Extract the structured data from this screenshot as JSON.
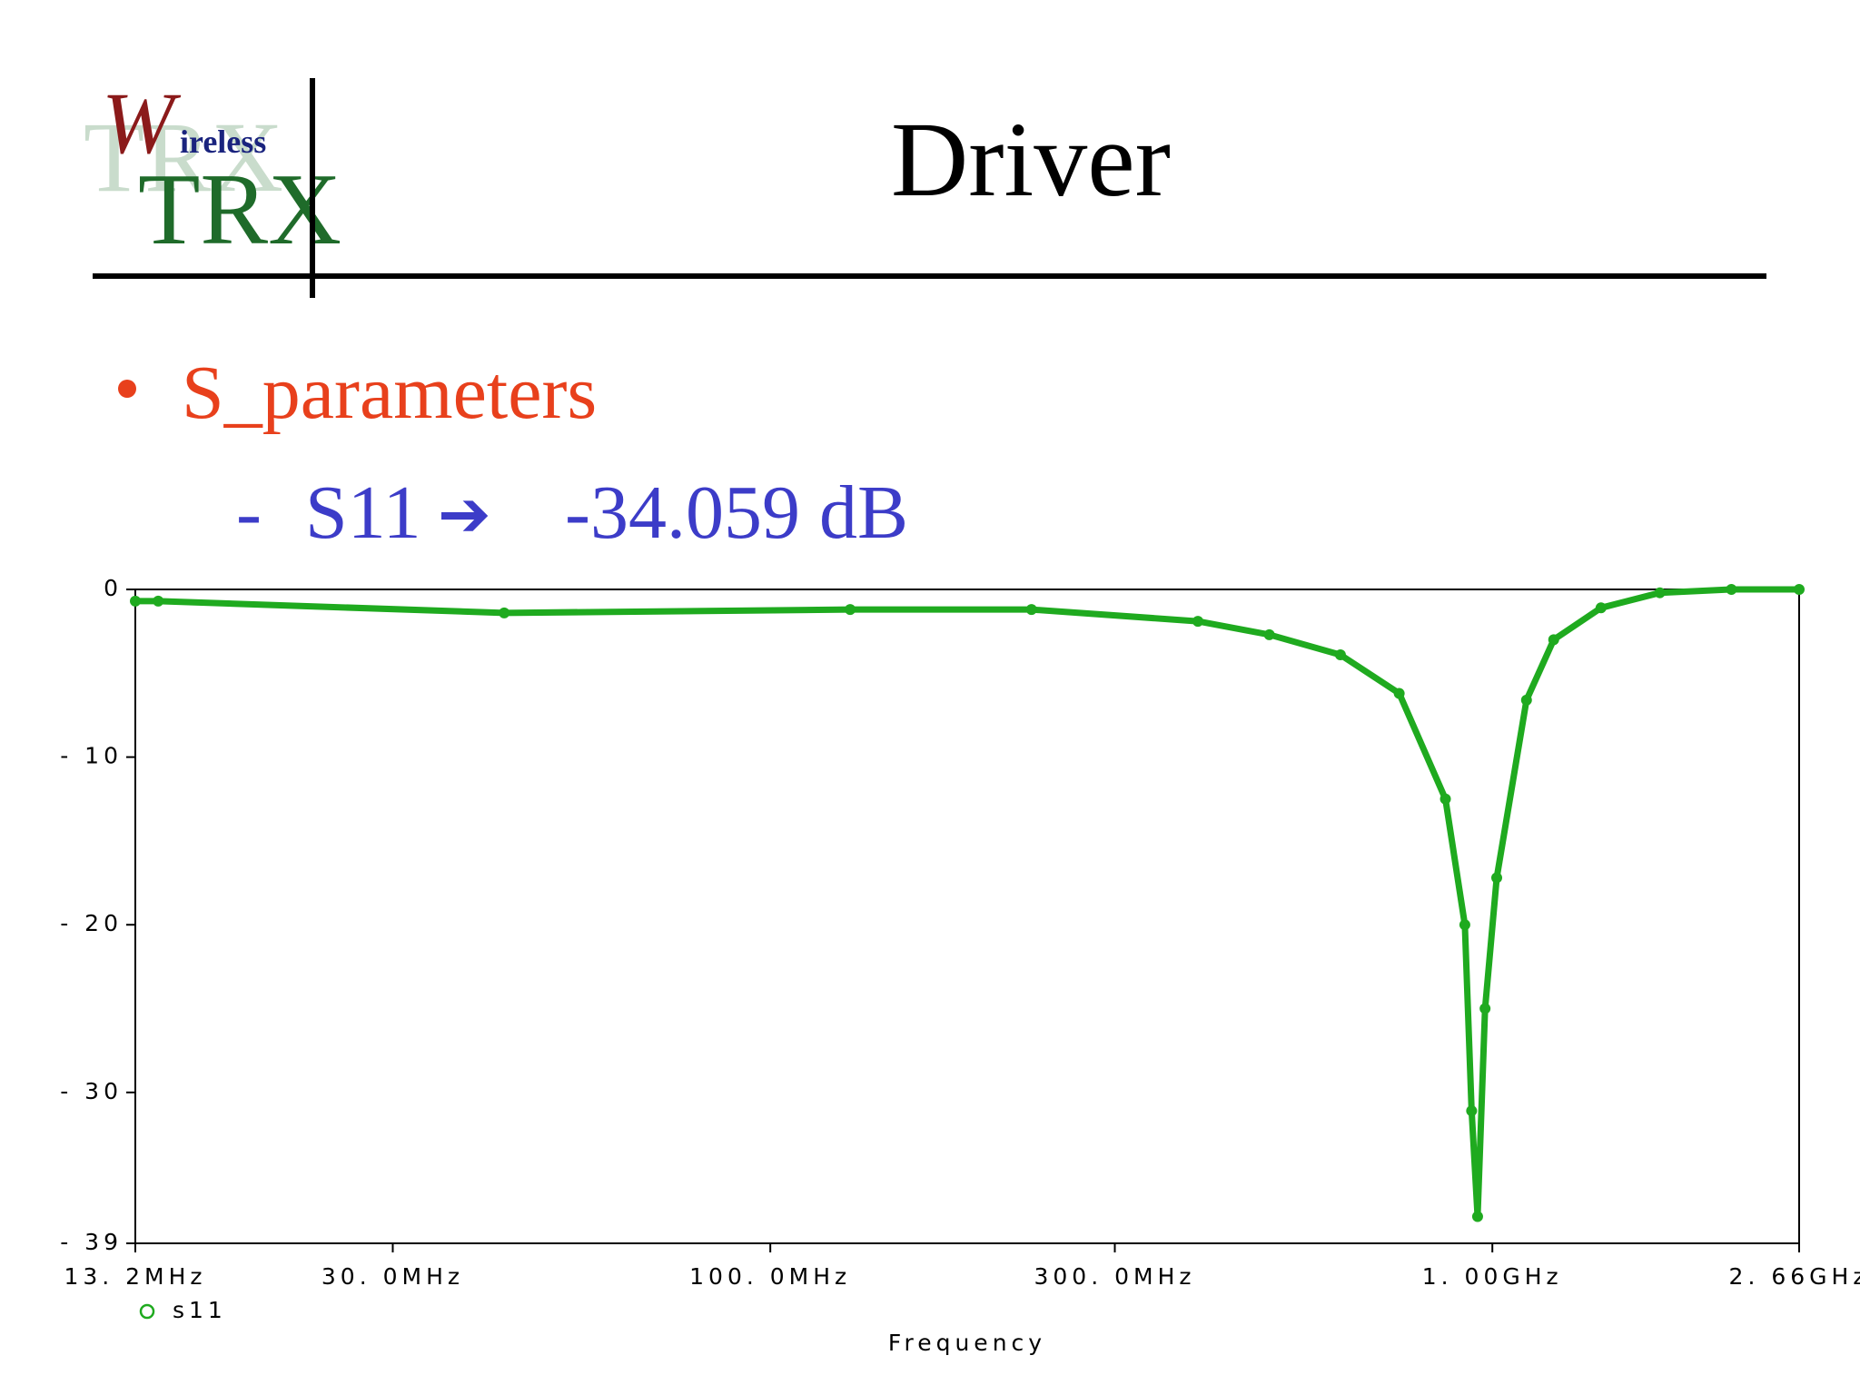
{
  "header": {
    "logo": {
      "initial": "W",
      "word": "ireless",
      "brand": "TRX"
    },
    "title": "Driver"
  },
  "bullets": [
    {
      "text": "S_parameters"
    },
    {
      "dash": "-",
      "label": "S11",
      "arrow": "➔",
      "result": "-34.059 dB"
    }
  ],
  "chart_data": {
    "type": "line",
    "xlabel": "Frequency",
    "xscale": "log",
    "x": [
      13.2,
      14.2,
      42.8,
      129,
      230,
      391,
      491,
      616,
      743,
      861,
      916,
      936,
      954,
      977,
      1014,
      1115,
      1216,
      1414,
      1706,
      2143,
      2660
    ],
    "series": [
      {
        "name": "s11",
        "color": "#1faa1f",
        "values": [
          -0.7,
          -0.7,
          -1.4,
          -1.2,
          -1.2,
          -1.9,
          -2.7,
          -3.9,
          -6.2,
          -12.5,
          -20,
          -31.1,
          -37.4,
          -25,
          -17.2,
          -6.6,
          -3.0,
          -1.1,
          -0.2,
          0,
          0
        ]
      }
    ],
    "xlim": [
      13.2,
      2660
    ],
    "xticks": [
      {
        "value": 13.2,
        "label": "13. 2MHz"
      },
      {
        "value": 30,
        "label": "30. 0MHz"
      },
      {
        "value": 100,
        "label": "100. 0MHz"
      },
      {
        "value": 300,
        "label": "300. 0MHz"
      },
      {
        "value": 1000,
        "label": "1. 00GHz"
      },
      {
        "value": 2660,
        "label": "2. 66GHz"
      }
    ],
    "ylim": [
      -39,
      0
    ],
    "yticks": [
      0,
      {
        "value": -10,
        "label": "- 10"
      },
      {
        "value": -20,
        "label": "- 20"
      },
      {
        "value": -30,
        "label": "- 30"
      },
      {
        "value": -39,
        "label": "- 39"
      }
    ]
  }
}
